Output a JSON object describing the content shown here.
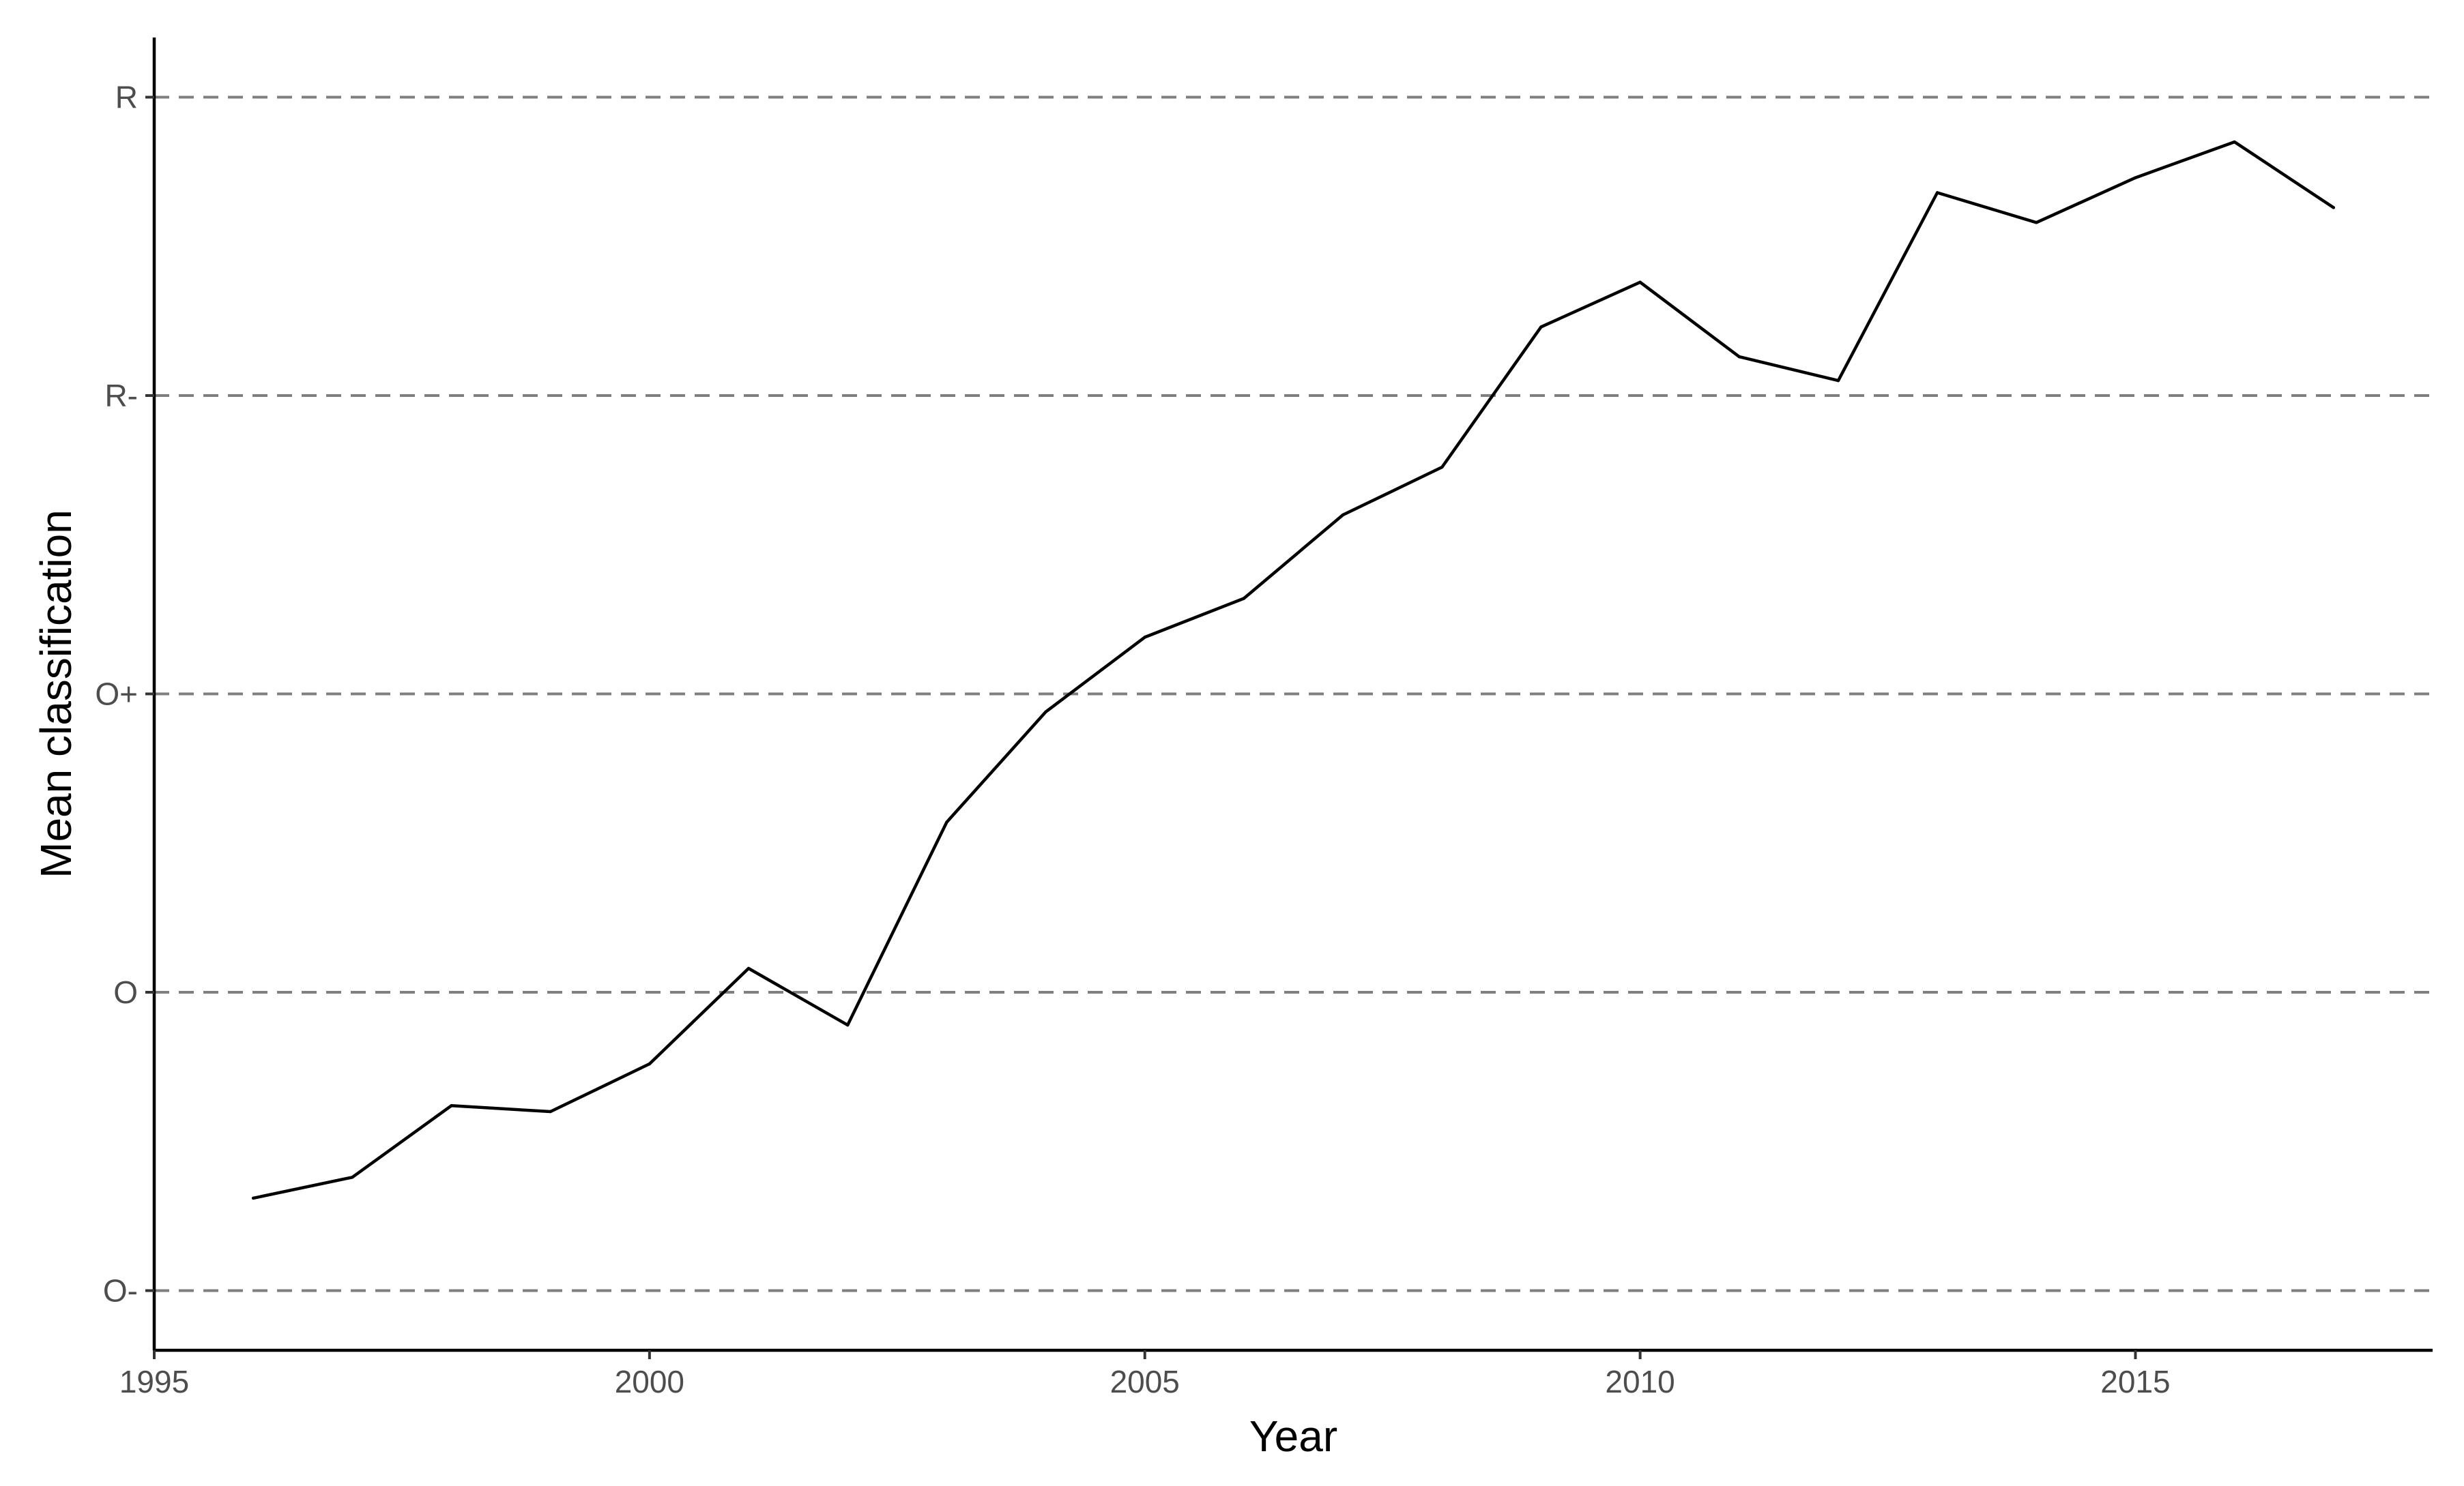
{
  "chart_data": {
    "type": "line",
    "title": "",
    "xlabel": "Year",
    "ylabel": "Mean classification",
    "xlim": [
      1995,
      2018
    ],
    "ylim": [
      -0.2,
      4.2
    ],
    "x_ticks": [
      1995,
      2000,
      2005,
      2010,
      2015
    ],
    "y_ticks": [
      {
        "value": 0,
        "label": "O-"
      },
      {
        "value": 1,
        "label": "O"
      },
      {
        "value": 2,
        "label": "O+"
      },
      {
        "value": 3,
        "label": "R-"
      },
      {
        "value": 4,
        "label": "R"
      }
    ],
    "grid": "horizontal dashed at y ticks",
    "legend": "none",
    "colors": {
      "line": "#000000",
      "grid": "#7f7f7f",
      "axis": "#000000",
      "tick_text": "#4d4d4d"
    },
    "series": [
      {
        "x": [
          1996,
          1997,
          1998,
          1999,
          2000,
          2001,
          2002,
          2003,
          2004,
          2005,
          2006,
          2007,
          2008,
          2009,
          2010,
          2011,
          2012,
          2013,
          2014,
          2015,
          2016,
          2017
        ],
        "y": [
          0.31,
          0.38,
          0.62,
          0.6,
          0.76,
          1.08,
          0.89,
          1.57,
          1.94,
          2.19,
          2.32,
          2.6,
          2.76,
          3.23,
          3.38,
          3.13,
          3.05,
          3.68,
          3.58,
          3.73,
          3.85,
          3.63
        ]
      }
    ]
  }
}
